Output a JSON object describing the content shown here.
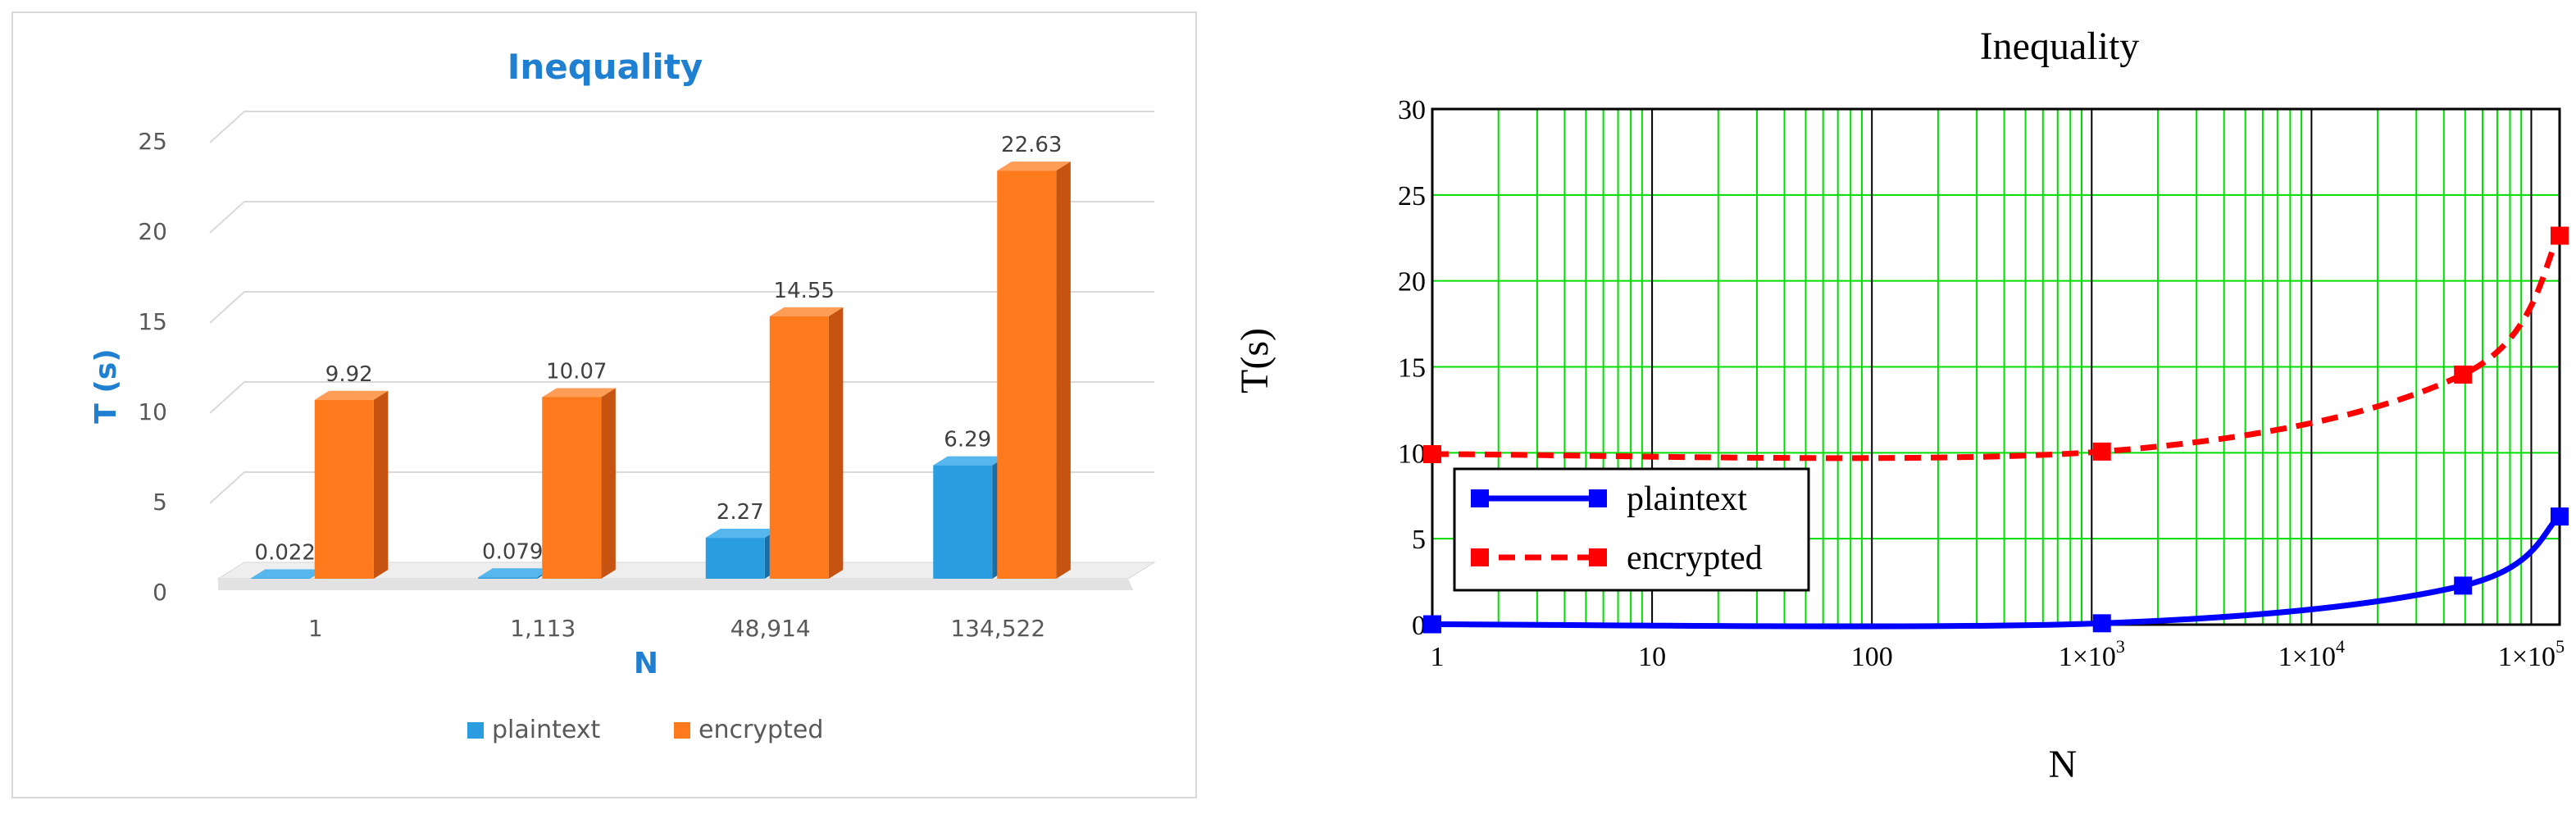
{
  "colors": {
    "plaintext_face": "#2a9de0",
    "plaintext_top": "#56b7ee",
    "plaintext_side": "#1a6ea8",
    "encrypted_face": "#ff7a1c",
    "encrypted_top": "#ff9c55",
    "encrypted_side": "#c65410",
    "title_left": "#1f7fd0",
    "grid_right": "#00dd00",
    "line_plaintext": "#0000ff",
    "line_encrypted": "#ff0000"
  },
  "chart_data": [
    {
      "type": "bar",
      "title": "Inequality",
      "xlabel": "N",
      "ylabel": "T (s)",
      "categories": [
        "1",
        "1,113",
        "48,914",
        "134,522"
      ],
      "series": [
        {
          "name": "plaintext",
          "values": [
            0.022,
            0.079,
            2.27,
            6.29
          ],
          "labels": [
            "0.022",
            "0.079",
            "2.27",
            "6.29"
          ]
        },
        {
          "name": "encrypted",
          "values": [
            9.92,
            10.07,
            14.55,
            22.63
          ],
          "labels": [
            "9.92",
            "10.07",
            "14.55",
            "22.63"
          ]
        }
      ],
      "yticks": [
        "0",
        "5",
        "10",
        "15",
        "20",
        "25"
      ],
      "ylim": [
        0,
        25
      ],
      "grid": true,
      "legend": "bottom",
      "style": "3d"
    },
    {
      "type": "line",
      "title": "Inequality",
      "xlabel": "N",
      "ylabel": "T(s)",
      "xscale": "log",
      "xlim": [
        1,
        134522
      ],
      "ylim": [
        0,
        30
      ],
      "yticks": [
        "0",
        "5",
        "10",
        "15",
        "20",
        "25",
        "30"
      ],
      "xticks": [
        {
          "value": 1,
          "base": "1",
          "exp": ""
        },
        {
          "value": 10,
          "base": "10",
          "exp": ""
        },
        {
          "value": 100,
          "base": "100",
          "exp": ""
        },
        {
          "value": 1000,
          "base": "1×10",
          "exp": "3"
        },
        {
          "value": 10000,
          "base": "1×10",
          "exp": "4"
        },
        {
          "value": 100000,
          "base": "1×10",
          "exp": "5"
        }
      ],
      "series": [
        {
          "name": "plaintext",
          "style": "solid",
          "x": [
            1,
            1113,
            48914,
            134522
          ],
          "y": [
            0.022,
            0.079,
            2.27,
            6.29
          ]
        },
        {
          "name": "encrypted",
          "style": "dashed",
          "x": [
            1,
            1113,
            48914,
            134522
          ],
          "y": [
            9.92,
            10.07,
            14.55,
            22.63
          ]
        }
      ],
      "grid": true,
      "legend": "lower-left"
    }
  ]
}
